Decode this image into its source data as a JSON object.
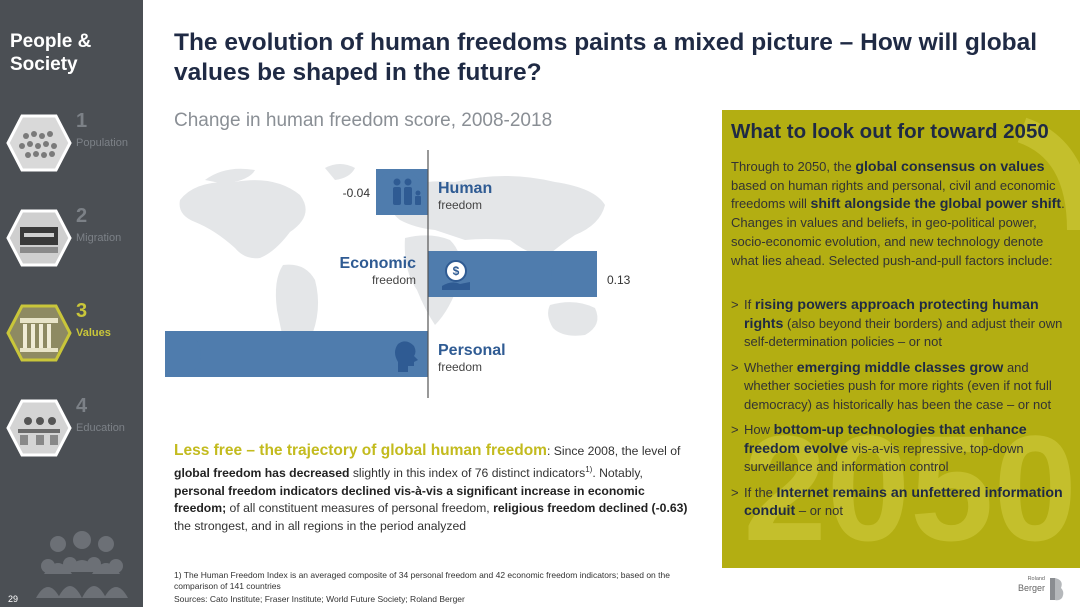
{
  "sidebar": {
    "title": "People &\nSociety",
    "items": [
      {
        "num": "1",
        "label": "Population",
        "active": false
      },
      {
        "num": "2",
        "label": "Migration",
        "active": false
      },
      {
        "num": "3",
        "label": "Values",
        "active": true
      },
      {
        "num": "4",
        "label": "Education",
        "active": false
      }
    ],
    "page_number": "29"
  },
  "header": {
    "title": "The evolution of human freedoms paints a mixed picture – How will global values be shaped in the future?",
    "subtitle": "Change in human freedom score, 2008-2018"
  },
  "chart_data": {
    "type": "bar",
    "orientation": "horizontal",
    "categories": [
      "Human freedom",
      "Economic freedom",
      "Personal freedom"
    ],
    "category_titles": [
      "Human",
      "Economic",
      "Personal"
    ],
    "category_subtitles": [
      "freedom",
      "freedom",
      "freedom"
    ],
    "values": [
      -0.04,
      0.13,
      -0.21
    ],
    "value_labels": [
      "-0.04",
      "0.13",
      "-0.21"
    ],
    "icons": [
      "family-icon",
      "dollar-hand-icon",
      "head-profile-icon"
    ],
    "xlim": [
      -0.21,
      0.13
    ],
    "bar_color": "#4f7cad",
    "label_color": "#2f5b93",
    "map_color": "#e4e6e8"
  },
  "summary": {
    "lead": "Less free – the trajectory of global human freedom",
    "p1": ": Since 2008, the level of ",
    "b1": "global freedom has decreased",
    "p2": " slightly in this index of 76 distinct indicators",
    "sup": "1)",
    "p3": ". Notably, ",
    "b2": "personal freedom indicators declined vis-à-vis a significant increase in economic freedom;",
    "p4": " of all constituent measures of personal freedom, ",
    "b3": "religious freedom declined (-0.63)",
    "p5": " the strongest, and in all regions in the period analyzed"
  },
  "footnote": "1) The Human Freedom Index is an averaged composite of 34 personal freedom and 42 economic freedom indicators; based on the comparison of 141 countries",
  "sources": "Sources: Cato Institute; Fraser Institute; World Future Society; Roland Berger",
  "panel": {
    "title": "What to look out for toward 2050",
    "intro": {
      "t1": "Through to 2050, the ",
      "b1": "global consensus on values",
      "t2": " based on human rights and personal, civil and economic freedoms will ",
      "b2": "shift alongside the global power shift",
      "t3": ". Changes in values and beliefs, in geo-political power, socio-economic evolution, and new technology denote what lies ahead. Selected push-and-pull factors include:"
    },
    "bullets": [
      {
        "marker": ">",
        "t1": "If ",
        "b": "rising powers approach protecting human rights",
        "t2": " (also beyond their borders) and adjust their own self-determination policies – or not"
      },
      {
        "marker": ">",
        "t1": "Whether ",
        "b": "emerging middle classes grow",
        "t2": " and whether societies push for more rights (even if not full democracy) as historically has been the case – or not"
      },
      {
        "marker": ">",
        "t1": "How ",
        "b": "bottom-up technologies that enhance freedom evolve",
        "t2": " vis-a-vis repressive, top-down surveillance and information control"
      },
      {
        "marker": ">",
        "t1": "If the ",
        "b": "Internet remains an unfettered information conduit",
        "t2": " – or not"
      }
    ],
    "watermark": "2050",
    "color": "#b3ae12"
  },
  "logo": {
    "small": "Roland",
    "name": "Berger"
  }
}
